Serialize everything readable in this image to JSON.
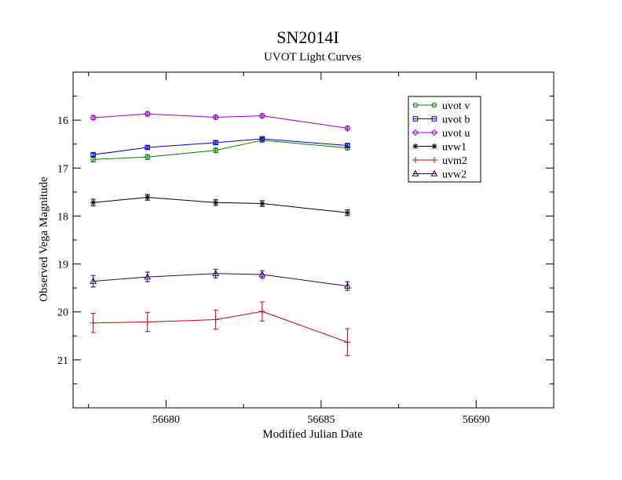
{
  "chart_data": {
    "type": "line",
    "title": "SN2014I",
    "subtitle": "UVOT Light Curves",
    "xlabel": "Modified Julian Date",
    "ylabel": "Observed Vega Magnitude",
    "xlim": [
      56677.0,
      56692.5
    ],
    "ylim": [
      22.0,
      15.0
    ],
    "y_inverted": true,
    "x_major_ticks": [
      56680,
      56685,
      56690
    ],
    "x_minor_step": 2.5,
    "y_major_ticks": [
      16,
      17,
      18,
      19,
      20,
      21
    ],
    "y_minor_step": 0.5,
    "grid": false,
    "legend_placement": "top-right",
    "x": [
      56677.65,
      56679.4,
      56681.6,
      56683.1,
      56685.85
    ],
    "series": [
      {
        "name": "uvot v",
        "color": "#008000",
        "marker": "circle",
        "values": [
          16.82,
          16.77,
          16.63,
          16.42,
          16.58
        ],
        "errors": [
          0.05,
          0.05,
          0.05,
          0.04,
          0.04
        ]
      },
      {
        "name": "uvot b",
        "color": "#0000cc",
        "marker": "square",
        "values": [
          16.72,
          16.57,
          16.47,
          16.39,
          16.53
        ],
        "errors": [
          0.03,
          0.03,
          0.03,
          0.03,
          0.03
        ]
      },
      {
        "name": "uvot u",
        "color": "#9900cc",
        "marker": "diamond",
        "values": [
          15.95,
          15.87,
          15.94,
          15.91,
          16.17
        ],
        "errors": [
          0.04,
          0.04,
          0.04,
          0.04,
          0.04
        ]
      },
      {
        "name": "uvw1",
        "color": "#000000",
        "marker": "star",
        "values": [
          17.72,
          17.61,
          17.72,
          17.74,
          17.93
        ],
        "errors": [
          0.07,
          0.06,
          0.06,
          0.06,
          0.06
        ]
      },
      {
        "name": "uvm2",
        "color": "#cc0000",
        "marker": "plus",
        "values": [
          20.23,
          20.21,
          20.16,
          19.99,
          20.63
        ],
        "errors": [
          0.2,
          0.2,
          0.2,
          0.2,
          0.28
        ]
      },
      {
        "name": "uvw2",
        "color": "#330066",
        "marker": "triangle",
        "values": [
          19.36,
          19.27,
          19.2,
          19.22,
          19.46
        ],
        "errors": [
          0.12,
          0.1,
          0.09,
          0.08,
          0.09
        ]
      }
    ]
  }
}
